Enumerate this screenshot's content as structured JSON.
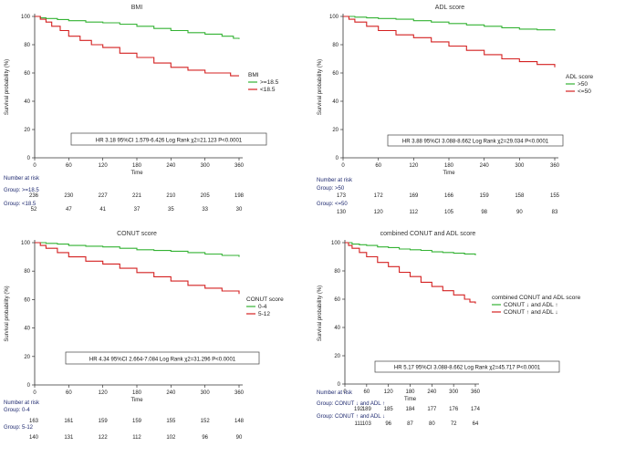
{
  "chart_data": [
    {
      "type": "line",
      "title": "BMI",
      "xlabel": "Time",
      "ylabel": "Survival probability (%)",
      "xlim": [
        0,
        360
      ],
      "ylim": [
        0,
        100
      ],
      "xticks": [
        "0",
        "60",
        "120",
        "180",
        "240",
        "300",
        "360"
      ],
      "yticks": [
        "0",
        "20",
        "40",
        "60",
        "80",
        "100"
      ],
      "legend_title": "BMI",
      "stat_text": "HR 3.18 95%CI 1.579-6.426 Log Rank χ2=21.123 P<0.0001",
      "series": [
        {
          "name": ">=18.5",
          "color": "#33b233",
          "x": [
            0,
            10,
            20,
            40,
            60,
            90,
            120,
            150,
            180,
            210,
            240,
            270,
            300,
            330,
            350,
            360
          ],
          "y": [
            100,
            99,
            98.5,
            97.8,
            97,
            96,
            95.5,
            94.5,
            93,
            91.5,
            90,
            88.5,
            87.5,
            86,
            84.5,
            84
          ]
        },
        {
          "name": "<18.5",
          "color": "#d42020",
          "x": [
            0,
            10,
            20,
            30,
            45,
            60,
            80,
            100,
            120,
            150,
            180,
            210,
            240,
            270,
            300,
            330,
            345,
            360
          ],
          "y": [
            100,
            98,
            96,
            93,
            90,
            86,
            83,
            80,
            78,
            74,
            71,
            67,
            64,
            62,
            60,
            60,
            58,
            58
          ]
        }
      ],
      "risk_table": {
        "heading": "Number at risk",
        "groups": [
          {
            "label": "Group: >=18.5",
            "values": [
              "236",
              "230",
              "227",
              "221",
              "210",
              "205",
              "198"
            ]
          },
          {
            "label": "Group: <18.5",
            "values": [
              "52",
              "47",
              "41",
              "37",
              "35",
              "33",
              "30"
            ]
          }
        ]
      }
    },
    {
      "type": "line",
      "title": "ADL score",
      "xlabel": "Time",
      "ylabel": "Survival probability (%)",
      "xlim": [
        0,
        360
      ],
      "ylim": [
        0,
        100
      ],
      "xticks": [
        "0",
        "60",
        "120",
        "180",
        "240",
        "300",
        "360"
      ],
      "yticks": [
        "0",
        "20",
        "40",
        "60",
        "80",
        "100"
      ],
      "legend_title": "ADL score",
      "stat_text": "HR 3.88 95%CI 3.088-8.662 Log Rank χ2=29.034 P<0.0001",
      "series": [
        {
          "name": ">50",
          "color": "#33b233",
          "x": [
            0,
            20,
            40,
            60,
            90,
            120,
            150,
            180,
            210,
            240,
            270,
            300,
            330,
            360
          ],
          "y": [
            100,
            99.5,
            99,
            98.5,
            98,
            97,
            96,
            95,
            94,
            93,
            92,
            91,
            90.5,
            90
          ]
        },
        {
          "name": "<=50",
          "color": "#d42020",
          "x": [
            0,
            10,
            20,
            40,
            60,
            90,
            120,
            150,
            180,
            210,
            240,
            270,
            300,
            330,
            360
          ],
          "y": [
            100,
            98,
            96,
            93,
            90,
            87,
            85,
            82,
            79,
            76,
            73,
            70,
            68,
            66,
            64
          ]
        }
      ],
      "risk_table": {
        "heading": "Number at risk",
        "groups": [
          {
            "label": "Group: >50",
            "values": [
              "173",
              "172",
              "169",
              "166",
              "159",
              "158",
              "155"
            ]
          },
          {
            "label": "Group: <=50",
            "values": [
              "130",
              "120",
              "112",
              "105",
              "98",
              "90",
              "83"
            ]
          }
        ]
      }
    },
    {
      "type": "line",
      "title": "CONUT score",
      "xlabel": "Time",
      "ylabel": "Survival probability (%)",
      "xlim": [
        0,
        360
      ],
      "ylim": [
        0,
        100
      ],
      "xticks": [
        "0",
        "60",
        "120",
        "180",
        "240",
        "300",
        "360"
      ],
      "yticks": [
        "0",
        "20",
        "40",
        "60",
        "80",
        "100"
      ],
      "legend_title": "CONUT score",
      "stat_text": "HR 4.34 95%CI 2.664-7.084 Log Rank χ2=31.296 P<0.0001",
      "series": [
        {
          "name": "0-4",
          "color": "#33b233",
          "x": [
            0,
            20,
            40,
            60,
            90,
            120,
            150,
            180,
            210,
            240,
            270,
            300,
            330,
            360
          ],
          "y": [
            100,
            99.5,
            99,
            98,
            97.5,
            97,
            96,
            95,
            94.5,
            94,
            93,
            92,
            91,
            90
          ]
        },
        {
          "name": "5-12",
          "color": "#d42020",
          "x": [
            0,
            10,
            20,
            40,
            60,
            90,
            120,
            150,
            180,
            210,
            240,
            270,
            300,
            330,
            360
          ],
          "y": [
            100,
            98,
            96,
            93,
            90,
            87,
            85,
            82,
            79,
            76,
            73,
            70,
            68,
            66,
            64
          ]
        }
      ],
      "risk_table": {
        "heading": "Number at risk",
        "groups": [
          {
            "label": "Group: 0-4",
            "values": [
              "163",
              "161",
              "159",
              "159",
              "155",
              "152",
              "148"
            ]
          },
          {
            "label": "Group: 5-12",
            "values": [
              "140",
              "131",
              "122",
              "112",
              "102",
              "96",
              "90"
            ]
          }
        ]
      }
    },
    {
      "type": "line",
      "title": "combined CONUT and ADL score",
      "xlabel": "Time",
      "ylabel": "Survival probability (%)",
      "xlim": [
        0,
        360
      ],
      "ylim": [
        0,
        100
      ],
      "xticks": [
        "0",
        "60",
        "120",
        "180",
        "240",
        "300",
        "360"
      ],
      "yticks": [
        "0",
        "20",
        "40",
        "60",
        "80",
        "100"
      ],
      "legend_title": "combined CONUT and ADL score",
      "stat_text": "HR 5.17 95%CI 3.088-8.662 Log Rank χ2=45.717 P<0.0001",
      "series": [
        {
          "name": "CONUT ↓ and ADL ↑",
          "color": "#33b233",
          "x": [
            0,
            20,
            40,
            60,
            90,
            120,
            150,
            180,
            210,
            240,
            270,
            300,
            330,
            360
          ],
          "y": [
            100,
            99,
            98.5,
            98,
            97,
            96.5,
            95.5,
            95,
            94.5,
            93.5,
            93,
            92.5,
            92,
            91
          ]
        },
        {
          "name": "CONUT ↑ and ADL ↓",
          "color": "#d42020",
          "x": [
            0,
            10,
            20,
            40,
            60,
            90,
            120,
            150,
            180,
            210,
            240,
            270,
            300,
            330,
            345,
            360
          ],
          "y": [
            100,
            98,
            96,
            93,
            90,
            86,
            83,
            79,
            76,
            72,
            69,
            66,
            63,
            60,
            58,
            57
          ]
        }
      ],
      "risk_table": {
        "heading": "Number at risk",
        "groups": [
          {
            "label": "Group: CONUT ↓ and ADL ↑",
            "values": [
              "192",
              "189",
              "185",
              "184",
              "177",
              "176",
              "174"
            ]
          },
          {
            "label": "Group: CONUT ↑ and ADL ↓",
            "values": [
              "111",
              "103",
              "96",
              "87",
              "80",
              "72",
              "64"
            ]
          }
        ]
      }
    }
  ]
}
